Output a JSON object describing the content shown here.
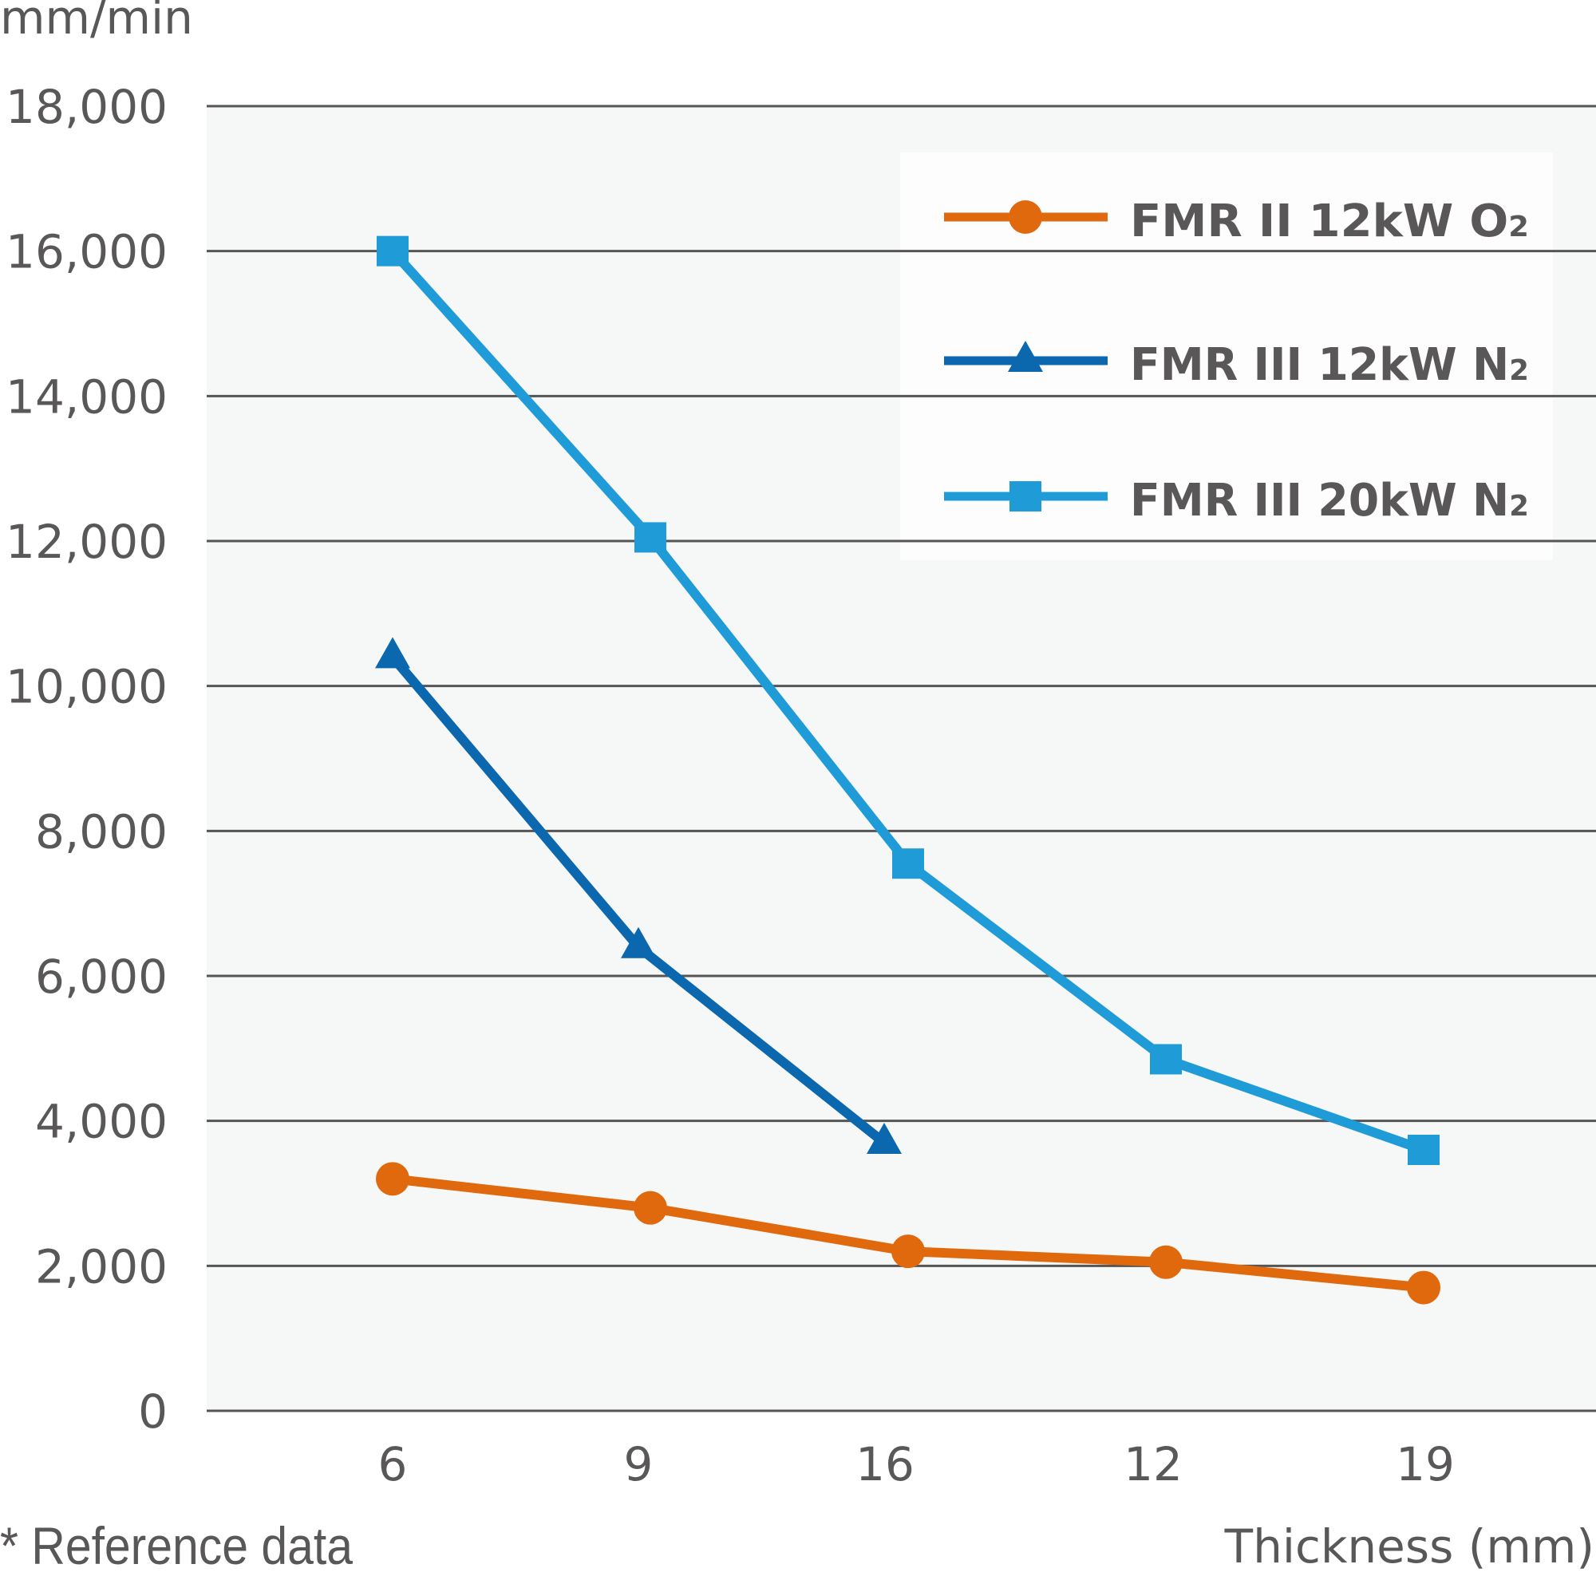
{
  "chart_data": {
    "type": "line",
    "title": "",
    "ylabel": "mm/min",
    "xlabel": "Thickness (mm)",
    "footnote": "* Reference data",
    "ylim": [
      0,
      18000
    ],
    "yticks": [
      0,
      2000,
      4000,
      6000,
      8000,
      10000,
      12000,
      14000,
      16000,
      18000
    ],
    "ytick_labels": [
      "0",
      "2,000",
      "4,000",
      "6,000",
      "8,000",
      "10,000",
      "12,000",
      "14,000",
      "16,000",
      "18,000"
    ],
    "categories": [
      "6",
      "9",
      "16",
      "12",
      "19"
    ],
    "grid": true,
    "legend_position": "top-right",
    "series": [
      {
        "name": "FMR II  12kW O2",
        "label_main": "FMR II  12kW O",
        "label_sub": "2",
        "marker": "circle",
        "color": "#e0690e",
        "values": [
          3200,
          2800,
          2200,
          2050,
          1700
        ]
      },
      {
        "name": "FMR III 12kW N2",
        "label_main": "FMR III 12kW N",
        "label_sub": "2",
        "marker": "triangle",
        "color": "#0b67ae",
        "values": [
          10400,
          6400,
          3700,
          null,
          null
        ]
      },
      {
        "name": "FMR III 20kW N2",
        "label_main": "FMR III 20kW N",
        "label_sub": "2",
        "marker": "square",
        "color": "#1f9bd7",
        "values": [
          16000,
          12050,
          7550,
          4850,
          3600
        ]
      }
    ]
  },
  "colors": {
    "plot_background": "#f6f8f8",
    "gridline": "#555555",
    "text": "#595757",
    "legend_background": "#fdfdfd"
  }
}
